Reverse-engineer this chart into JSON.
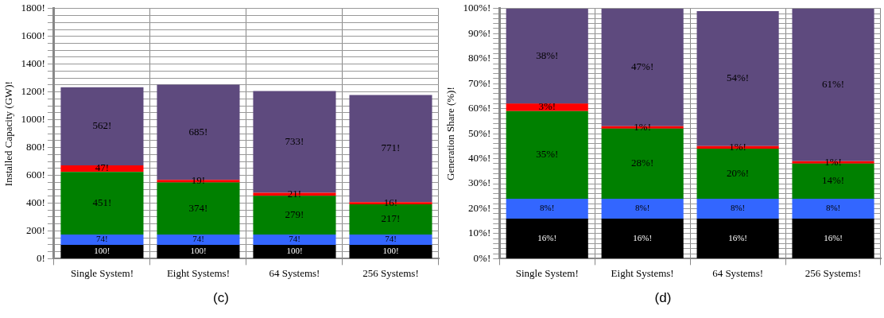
{
  "chart_data": [
    {
      "type": "bar",
      "stacked": true,
      "ylabel": "Installed Capacity (GW)!",
      "categories": [
        "Single System!",
        "Eight Systems!",
        "64 Systems!",
        "256 Systems!"
      ],
      "series": [
        {
          "color": "#000000",
          "values": [
            100,
            100,
            100,
            100
          ],
          "value_labels": [
            "100!",
            "100!",
            "100!",
            "100!"
          ]
        },
        {
          "color": "#3366ff",
          "values": [
            74,
            74,
            74,
            74
          ],
          "value_labels": [
            "74!",
            "74!",
            "74!",
            "74!"
          ]
        },
        {
          "color": "#008000",
          "values": [
            451,
            374,
            279,
            217
          ],
          "value_labels": [
            "451!",
            "374!",
            "279!",
            "217!"
          ]
        },
        {
          "color": "#ff0000",
          "values": [
            47,
            19,
            21,
            16
          ],
          "value_labels": [
            "47!",
            "19!",
            "21!",
            "16!"
          ]
        },
        {
          "color": "#5e4a7e",
          "values": [
            562,
            685,
            733,
            771
          ],
          "value_labels": [
            "562!",
            "685!",
            "733!",
            "771!"
          ]
        }
      ],
      "ylim": [
        0,
        1800
      ],
      "yticks": [
        {
          "value": 0,
          "label": "0!"
        },
        {
          "value": 50,
          "label": null
        },
        {
          "value": 100,
          "label": null
        },
        {
          "value": 150,
          "label": null
        },
        {
          "value": 200,
          "label": "200!"
        },
        {
          "value": 250,
          "label": null
        },
        {
          "value": 300,
          "label": null
        },
        {
          "value": 350,
          "label": null
        },
        {
          "value": 400,
          "label": "400!"
        },
        {
          "value": 450,
          "label": null
        },
        {
          "value": 500,
          "label": null
        },
        {
          "value": 550,
          "label": null
        },
        {
          "value": 600,
          "label": "600!"
        },
        {
          "value": 650,
          "label": null
        },
        {
          "value": 700,
          "label": null
        },
        {
          "value": 750,
          "label": null
        },
        {
          "value": 800,
          "label": "800!"
        },
        {
          "value": 850,
          "label": null
        },
        {
          "value": 900,
          "label": null
        },
        {
          "value": 950,
          "label": null
        },
        {
          "value": 1000,
          "label": "1000!"
        },
        {
          "value": 1050,
          "label": null
        },
        {
          "value": 1100,
          "label": null
        },
        {
          "value": 1150,
          "label": null
        },
        {
          "value": 1200,
          "label": "1200!"
        },
        {
          "value": 1250,
          "label": null
        },
        {
          "value": 1300,
          "label": null
        },
        {
          "value": 1350,
          "label": null
        },
        {
          "value": 1400,
          "label": "1400!"
        },
        {
          "value": 1450,
          "label": null
        },
        {
          "value": 1500,
          "label": null
        },
        {
          "value": 1550,
          "label": null
        },
        {
          "value": 1600,
          "label": "1600!"
        },
        {
          "value": 1650,
          "label": null
        },
        {
          "value": 1700,
          "label": null
        },
        {
          "value": 1750,
          "label": null
        },
        {
          "value": 1800,
          "label": "1800!"
        }
      ],
      "grid": true,
      "annotations": [
        "(c)"
      ]
    },
    {
      "type": "bar",
      "stacked": true,
      "ylabel": "Generation Share (%)!",
      "categories": [
        "Single System!",
        "Eight Systems!",
        "64 Systems!",
        "256 Systems!"
      ],
      "series": [
        {
          "color": "#000000",
          "values": [
            16,
            16,
            16,
            16
          ],
          "value_labels": [
            "16%!",
            "16%!",
            "16%!",
            "16%!"
          ]
        },
        {
          "color": "#3366ff",
          "values": [
            8,
            8,
            8,
            8
          ],
          "value_labels": [
            "8%!",
            "8%!",
            "8%!",
            "8%!"
          ]
        },
        {
          "color": "#008000",
          "values": [
            35,
            28,
            20,
            14
          ],
          "value_labels": [
            "35%!",
            "28%!",
            "20%!",
            "14%!"
          ]
        },
        {
          "color": "#ff0000",
          "values": [
            3,
            1,
            1,
            1
          ],
          "value_labels": [
            "3%!",
            "1%!",
            "1%!",
            "1%!"
          ]
        },
        {
          "color": "#5e4a7e",
          "values": [
            38,
            47,
            54,
            61
          ],
          "value_labels": [
            "38%!",
            "47%!",
            "54%!",
            "61%!"
          ]
        }
      ],
      "ylim": [
        0,
        100
      ],
      "yticks": [
        {
          "value": 0,
          "label": "0%!"
        },
        {
          "value": 2,
          "label": null
        },
        {
          "value": 4,
          "label": null
        },
        {
          "value": 6,
          "label": null
        },
        {
          "value": 8,
          "label": null
        },
        {
          "value": 10,
          "label": "10%!"
        },
        {
          "value": 12,
          "label": null
        },
        {
          "value": 14,
          "label": null
        },
        {
          "value": 16,
          "label": null
        },
        {
          "value": 18,
          "label": null
        },
        {
          "value": 20,
          "label": "20%!"
        },
        {
          "value": 22,
          "label": null
        },
        {
          "value": 24,
          "label": null
        },
        {
          "value": 26,
          "label": null
        },
        {
          "value": 28,
          "label": null
        },
        {
          "value": 30,
          "label": "30%!"
        },
        {
          "value": 32,
          "label": null
        },
        {
          "value": 34,
          "label": null
        },
        {
          "value": 36,
          "label": null
        },
        {
          "value": 38,
          "label": null
        },
        {
          "value": 40,
          "label": "40%!"
        },
        {
          "value": 42,
          "label": null
        },
        {
          "value": 44,
          "label": null
        },
        {
          "value": 46,
          "label": null
        },
        {
          "value": 48,
          "label": null
        },
        {
          "value": 50,
          "label": "50%!"
        },
        {
          "value": 52,
          "label": null
        },
        {
          "value": 54,
          "label": null
        },
        {
          "value": 56,
          "label": null
        },
        {
          "value": 58,
          "label": null
        },
        {
          "value": 60,
          "label": "60%!"
        },
        {
          "value": 62,
          "label": null
        },
        {
          "value": 64,
          "label": null
        },
        {
          "value": 66,
          "label": null
        },
        {
          "value": 68,
          "label": null
        },
        {
          "value": 70,
          "label": "70%!"
        },
        {
          "value": 72,
          "label": null
        },
        {
          "value": 74,
          "label": null
        },
        {
          "value": 76,
          "label": null
        },
        {
          "value": 78,
          "label": null
        },
        {
          "value": 80,
          "label": "80%!"
        },
        {
          "value": 82,
          "label": null
        },
        {
          "value": 84,
          "label": null
        },
        {
          "value": 86,
          "label": null
        },
        {
          "value": 88,
          "label": null
        },
        {
          "value": 90,
          "label": "90%!"
        },
        {
          "value": 92,
          "label": null
        },
        {
          "value": 94,
          "label": null
        },
        {
          "value": 96,
          "label": null
        },
        {
          "value": 98,
          "label": null
        },
        {
          "value": 100,
          "label": "100%!"
        }
      ],
      "grid": true,
      "annotations": [
        "(d)"
      ]
    }
  ]
}
